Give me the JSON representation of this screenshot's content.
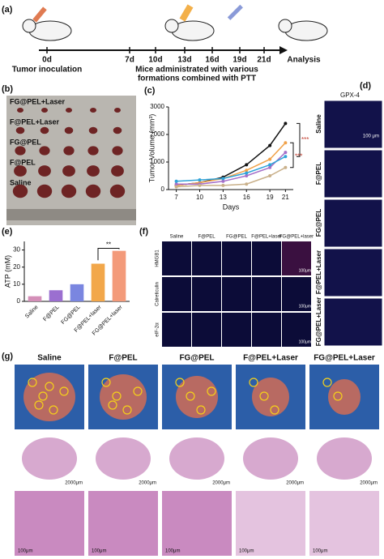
{
  "panel_labels": [
    "(a)",
    "(b)",
    "(c)",
    "(d)",
    "(e)",
    "(f)",
    "(g)"
  ],
  "timeline": {
    "days": [
      "0d",
      "7d",
      "10d",
      "13d",
      "16d",
      "19d",
      "21d"
    ],
    "end": "Analysis",
    "start_label": "Tumor inoculation",
    "treatment_label": [
      "Mice administrated with various",
      "formations combined with PTT"
    ]
  },
  "tumor_photo": {
    "labels": [
      "FG@PEL+Laser",
      "F@PEL+Laser",
      "FG@PEL",
      "F@PEL",
      "Saline"
    ]
  },
  "gpx4": {
    "title": "GPX-4",
    "groups": [
      "Saline",
      "F@PEL",
      "FG@PEL",
      "F@PEL+Laser",
      "FG@PEL+Laser"
    ],
    "scale": "100 μm"
  },
  "immunofluorescence": {
    "markers": [
      "HMGB1",
      "Calreticulin",
      "eIF-2α"
    ],
    "groups": [
      "Saline",
      "F@PEL",
      "FG@PEL",
      "F@PEL+laser",
      "FG@PEL+laser"
    ],
    "scale": "100μm"
  },
  "lung": {
    "groups": [
      "Saline",
      "F@PEL",
      "FG@PEL",
      "F@PEL+Laser",
      "FG@PEL+Laser"
    ],
    "scale_low": "2000μm",
    "scale_high": "100μm"
  },
  "chart_data": [
    {
      "type": "line",
      "xlabel": "Days",
      "ylabel": "Tumor Volume (mm³)",
      "x": [
        7,
        10,
        13,
        16,
        19,
        21
      ],
      "xlim": [
        6,
        22
      ],
      "xticks": [
        7,
        10,
        13,
        16,
        19,
        21
      ],
      "ylim": [
        0,
        3000
      ],
      "yticks": [
        0,
        1000,
        2000,
        3000
      ],
      "series": [
        {
          "color": "#111111",
          "values": [
            150,
            250,
            450,
            900,
            1600,
            2400
          ]
        },
        {
          "color": "#f0a24a",
          "values": [
            150,
            250,
            400,
            700,
            1100,
            1700
          ]
        },
        {
          "color": "#a56fc9",
          "values": [
            200,
            200,
            300,
            500,
            800,
            1350
          ]
        },
        {
          "color": "#2fa3d8",
          "values": [
            300,
            350,
            400,
            600,
            900,
            1200
          ]
        },
        {
          "color": "#c9b08a",
          "values": [
            100,
            150,
            150,
            200,
            500,
            800
          ]
        }
      ],
      "annotations": [
        "***",
        "***"
      ]
    },
    {
      "type": "bar",
      "ylabel": "ATP (mM)",
      "categories": [
        "Saline",
        "F@PEL",
        "FG@PEL",
        "F@PEL+laser",
        "FG@PEL+laser"
      ],
      "values": [
        3,
        6.5,
        10,
        22,
        29.5
      ],
      "colors": [
        "#d48fb8",
        "#9b6fd0",
        "#7a86e0",
        "#f2a74a",
        "#f39a7a"
      ],
      "ylim": [
        0,
        35
      ],
      "yticks": [
        0,
        10,
        20,
        30
      ],
      "annotations": [
        "**"
      ]
    }
  ]
}
